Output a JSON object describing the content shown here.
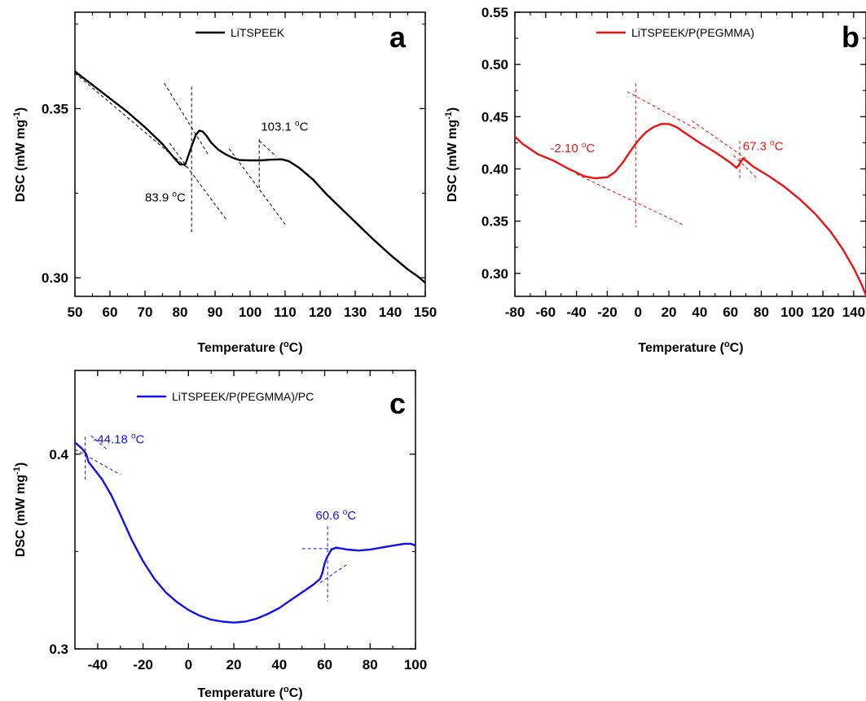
{
  "chart_data": [
    {
      "panel_label": "a",
      "type": "line",
      "xlabel": "Temperature (",
      "xlabel_unit": "o",
      "xlabel_end": "C)",
      "ylabel": "DSC (mW mg",
      "ylabel_sup": "-1",
      "ylabel_end": ")",
      "xlim": [
        50,
        150
      ],
      "ylim": [
        0.2945,
        0.3785
      ],
      "xticks": [
        50,
        60,
        70,
        80,
        90,
        100,
        110,
        120,
        130,
        140,
        150
      ],
      "yticks": [
        0.3,
        0.35
      ],
      "color": "#000000",
      "series": [
        {
          "name": "LiTSPEEK",
          "x": [
            50,
            55,
            60,
            65,
            70,
            75,
            78,
            80,
            81.5,
            82.5,
            83.5,
            84.5,
            85.5,
            86.5,
            87.5,
            89,
            91,
            93,
            95,
            97,
            100,
            103,
            106,
            109,
            111,
            114,
            118,
            122,
            126,
            130,
            135,
            140,
            145,
            148,
            150
          ],
          "y": [
            0.361,
            0.357,
            0.353,
            0.349,
            0.3445,
            0.3395,
            0.3358,
            0.3335,
            0.3335,
            0.3365,
            0.3395,
            0.3422,
            0.3435,
            0.3432,
            0.342,
            0.3398,
            0.3378,
            0.3365,
            0.3355,
            0.3348,
            0.3347,
            0.3347,
            0.3349,
            0.335,
            0.3345,
            0.3325,
            0.329,
            0.3245,
            0.3205,
            0.3165,
            0.3115,
            0.3068,
            0.3025,
            0.3003,
            0.2985
          ]
        }
      ],
      "guides": [
        {
          "x": [
            50,
            82
          ],
          "y": [
            0.3605,
            0.3325
          ]
        },
        {
          "x": [
            77,
            93.5
          ],
          "y": [
            0.3398,
            0.3168
          ]
        },
        {
          "x": [
            75.5,
            88
          ],
          "y": [
            0.3575,
            0.3365
          ]
        },
        {
          "x": [
            83.3,
            83.3
          ],
          "y": [
            0.3565,
            0.3135
          ]
        },
        {
          "x": [
            94,
            110
          ],
          "y": [
            0.3382,
            0.3158
          ]
        },
        {
          "x": [
            102.6,
            102.6
          ],
          "y": [
            0.341,
            0.3265
          ]
        },
        {
          "x": [
            102.6,
            107.5
          ],
          "y": [
            0.3405,
            0.3358
          ]
        }
      ],
      "annotations": [
        {
          "text": "103.1 ",
          "sup": "o",
          "end": "C",
          "x": 103.1,
          "y": 0.3435
        },
        {
          "text": "83.9 ",
          "sup": "o",
          "end": "C",
          "x": 70,
          "y": 0.3225
        }
      ]
    },
    {
      "panel_label": "b",
      "type": "line",
      "xlabel": "Temperature (",
      "xlabel_unit": "o",
      "xlabel_end": "C)",
      "ylabel": "DSC (mW mg",
      "ylabel_sup": "-1",
      "ylabel_end": ")",
      "xlim": [
        -80,
        148
      ],
      "ylim": [
        0.278,
        0.55
      ],
      "xticks": [
        -80,
        -60,
        -40,
        -20,
        0,
        20,
        40,
        60,
        80,
        100,
        120,
        140
      ],
      "yticks": [
        0.3,
        0.35,
        0.4,
        0.45,
        0.5,
        0.55
      ],
      "color": "#ee1111",
      "series": [
        {
          "name": "LiTSPEEK/P(PEGMMA)",
          "x": [
            -80,
            -75,
            -65,
            -55,
            -45,
            -35,
            -28,
            -20,
            -15,
            -10,
            -5,
            0,
            5,
            10,
            15,
            20,
            25,
            30,
            40,
            50,
            60,
            64,
            66,
            68,
            70,
            75,
            85,
            95,
            105,
            115,
            125,
            133,
            140,
            145,
            148
          ],
          "y": [
            0.431,
            0.424,
            0.414,
            0.408,
            0.4,
            0.393,
            0.391,
            0.392,
            0.397,
            0.406,
            0.417,
            0.427,
            0.435,
            0.44,
            0.443,
            0.443,
            0.44,
            0.435,
            0.425,
            0.416,
            0.406,
            0.401,
            0.405,
            0.41,
            0.408,
            0.402,
            0.393,
            0.383,
            0.371,
            0.357,
            0.34,
            0.323,
            0.305,
            0.29,
            0.279
          ]
        }
      ],
      "guides": [
        {
          "x": [
            -40,
            30
          ],
          "y": [
            0.395,
            0.346
          ]
        },
        {
          "x": [
            -7,
            38
          ],
          "y": [
            0.474,
            0.438
          ]
        },
        {
          "x": [
            -1.5,
            -1.5
          ],
          "y": [
            0.482,
            0.344
          ]
        },
        {
          "x": [
            35,
            70
          ],
          "y": [
            0.446,
            0.41
          ]
        },
        {
          "x": [
            62,
            78
          ],
          "y": [
            0.413,
            0.39
          ]
        },
        {
          "x": [
            66,
            66
          ],
          "y": [
            0.427,
            0.391
          ]
        }
      ],
      "annotations": [
        {
          "text": "-2.10 ",
          "sup": "o",
          "end": "C",
          "x": -57,
          "y": 0.416
        },
        {
          "text": "67.3 ",
          "sup": "o",
          "end": "C",
          "x": 68,
          "y": 0.418
        }
      ]
    },
    {
      "panel_label": "c",
      "type": "line",
      "xlabel": "Temperature (",
      "xlabel_unit": "o",
      "xlabel_end": "C)",
      "ylabel": "DSC (mW mg",
      "ylabel_sup": "-1",
      "ylabel_end": ")",
      "xlim": [
        -50,
        100
      ],
      "ylim": [
        0.3,
        0.443
      ],
      "xticks": [
        -40,
        -20,
        0,
        20,
        40,
        60,
        80,
        100
      ],
      "yticks": [
        0.3,
        0.4
      ],
      "color": "#1010ee",
      "series": [
        {
          "name": "LiTSPEEK/P(PEGMMA)/PC",
          "x": [
            -50,
            -47,
            -45,
            -44,
            -42,
            -38,
            -34,
            -30,
            -25,
            -20,
            -15,
            -10,
            -5,
            0,
            5,
            10,
            15,
            20,
            25,
            30,
            35,
            40,
            45,
            50,
            55,
            58,
            59,
            60,
            61,
            62,
            63,
            65,
            70,
            75,
            80,
            85,
            90,
            95,
            98,
            100
          ],
          "y": [
            0.406,
            0.403,
            0.4,
            0.396,
            0.393,
            0.387,
            0.379,
            0.369,
            0.356,
            0.345,
            0.336,
            0.329,
            0.324,
            0.32,
            0.317,
            0.315,
            0.314,
            0.3135,
            0.314,
            0.3155,
            0.318,
            0.321,
            0.325,
            0.329,
            0.333,
            0.336,
            0.339,
            0.344,
            0.347,
            0.349,
            0.351,
            0.352,
            0.351,
            0.3505,
            0.351,
            0.352,
            0.353,
            0.354,
            0.354,
            0.353
          ]
        }
      ],
      "guides": [
        {
          "x": [
            -50,
            -30
          ],
          "y": [
            0.4025,
            0.3895
          ]
        },
        {
          "x": [
            -45.5,
            -45.5
          ],
          "y": [
            0.409,
            0.387
          ]
        },
        {
          "x": [
            -43,
            -36
          ],
          "y": [
            0.4095,
            0.4025
          ]
        },
        {
          "x": [
            50,
            68
          ],
          "y": [
            0.3515,
            0.3515
          ]
        },
        {
          "x": [
            61.3,
            61.3
          ],
          "y": [
            0.363,
            0.3245
          ]
        },
        {
          "x": [
            58,
            70
          ],
          "y": [
            0.334,
            0.3435
          ]
        }
      ],
      "annotations": [
        {
          "text": "-44.18 ",
          "sup": "o",
          "end": "C",
          "x": -42,
          "y": 0.4055
        },
        {
          "text": "60.6 ",
          "sup": "o",
          "end": "C",
          "x": 56,
          "y": 0.3665
        }
      ]
    }
  ]
}
